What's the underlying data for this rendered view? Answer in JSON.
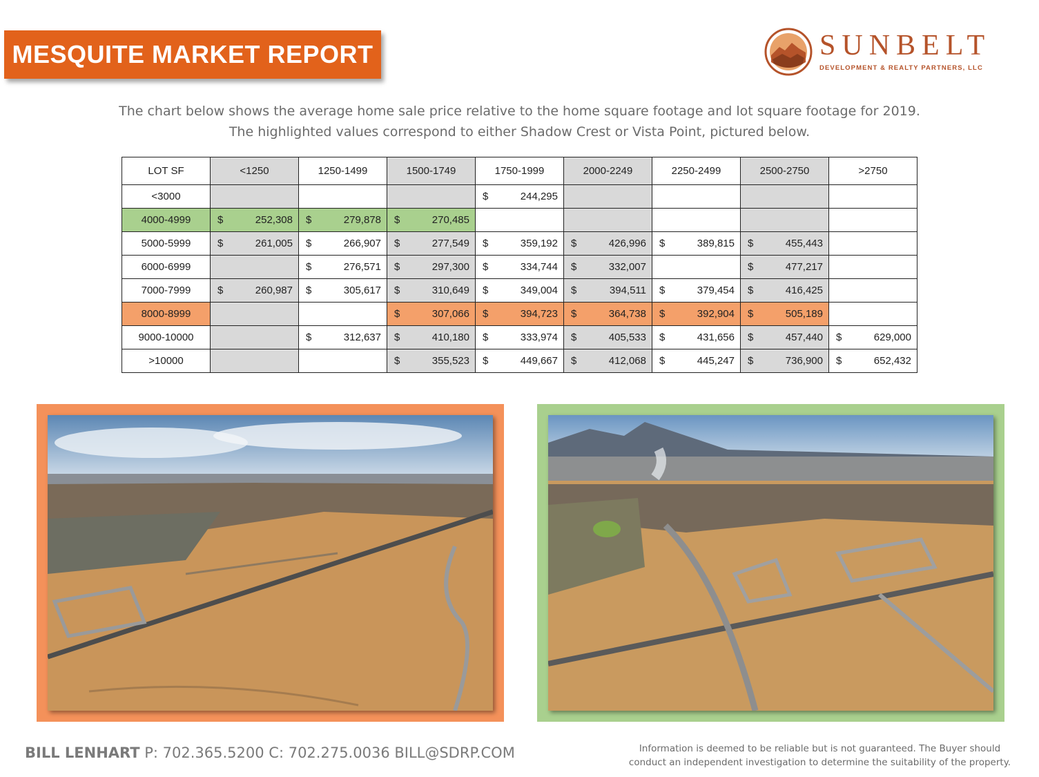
{
  "header": {
    "title": "MESQUITE MARKET REPORT"
  },
  "logo": {
    "name": "SUNBELT",
    "tagline": "DEVELOPMENT & REALTY PARTNERS, LLC",
    "accent": "#b5532a"
  },
  "intro": {
    "line1": "The chart below shows the average home sale price relative to the home square footage and lot square footage for 2019.",
    "line2": "The highlighted values correspond to either Shadow Crest or Vista Point, pictured below."
  },
  "table": {
    "columns": [
      "LOT SF",
      "<1250",
      "1250-1499",
      "1500-1749",
      "1750-1999",
      "2000-2249",
      "2250-2499",
      "2500-2750",
      ">2750"
    ],
    "currency": "$",
    "rows": [
      {
        "label": "<3000",
        "values": [
          "",
          "",
          "",
          "244,295",
          "",
          "",
          "",
          ""
        ]
      },
      {
        "label": "4000-4999",
        "values": [
          "252,308",
          "279,878",
          "270,485",
          "",
          "",
          "",
          "",
          ""
        ]
      },
      {
        "label": "5000-5999",
        "values": [
          "261,005",
          "266,907",
          "277,549",
          "359,192",
          "426,996",
          "389,815",
          "455,443",
          ""
        ]
      },
      {
        "label": "6000-6999",
        "values": [
          "",
          "276,571",
          "297,300",
          "334,744",
          "332,007",
          "",
          "477,217",
          ""
        ]
      },
      {
        "label": "7000-7999",
        "values": [
          "260,987",
          "305,617",
          "310,649",
          "349,004",
          "394,511",
          "379,454",
          "416,425",
          ""
        ]
      },
      {
        "label": "8000-8999",
        "values": [
          "",
          "",
          "307,066",
          "394,723",
          "364,738",
          "392,904",
          "505,189",
          ""
        ]
      },
      {
        "label": "9000-10000",
        "values": [
          "",
          "312,637",
          "410,180",
          "333,974",
          "405,533",
          "431,656",
          "457,440",
          "629,000"
        ]
      },
      {
        "label": ">10000",
        "values": [
          "",
          "",
          "355,523",
          "449,667",
          "412,068",
          "445,247",
          "736,900",
          "652,432"
        ]
      }
    ],
    "colors": {
      "gray": "#d9d9d9",
      "green": "#a9d08e",
      "orange": "#f4a06a"
    }
  },
  "photos": {
    "left_frame_color": "#f4915a",
    "right_frame_color": "#a9d08e"
  },
  "footer": {
    "name": "BILL LENHART",
    "contact": " P: 702.365.5200  C: 702.275.0036  BILL@SDRP.COM",
    "disclaimer1": "Information is deemed to be reliable but is not guaranteed.  The Buyer should",
    "disclaimer2": "conduct an independent investigation to determine the suitability of the property."
  }
}
